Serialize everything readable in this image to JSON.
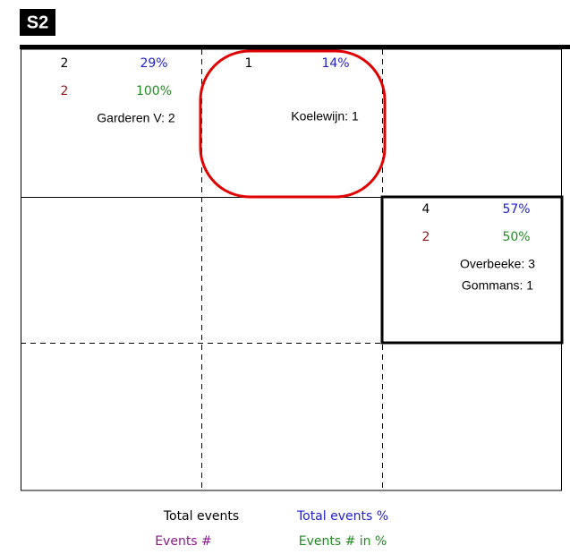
{
  "header": {
    "title": "S2"
  },
  "cells": [
    {
      "total": "2",
      "total_pct": "29%",
      "events": "2",
      "events_pct": "100%",
      "players": [
        "Garderen V: 2"
      ]
    },
    {
      "total": "1",
      "total_pct": "14%",
      "players": [
        "Koelewijn: 1"
      ]
    },
    {
      "total": "4",
      "total_pct": "57%",
      "events": "2",
      "events_pct": "50%",
      "players": [
        "Overbeeke: 3",
        "Gommans: 1"
      ]
    }
  ],
  "legend": {
    "total": "Total events",
    "total_pct": "Total events %",
    "events": "Events #",
    "events_pct": "Events # in %"
  }
}
